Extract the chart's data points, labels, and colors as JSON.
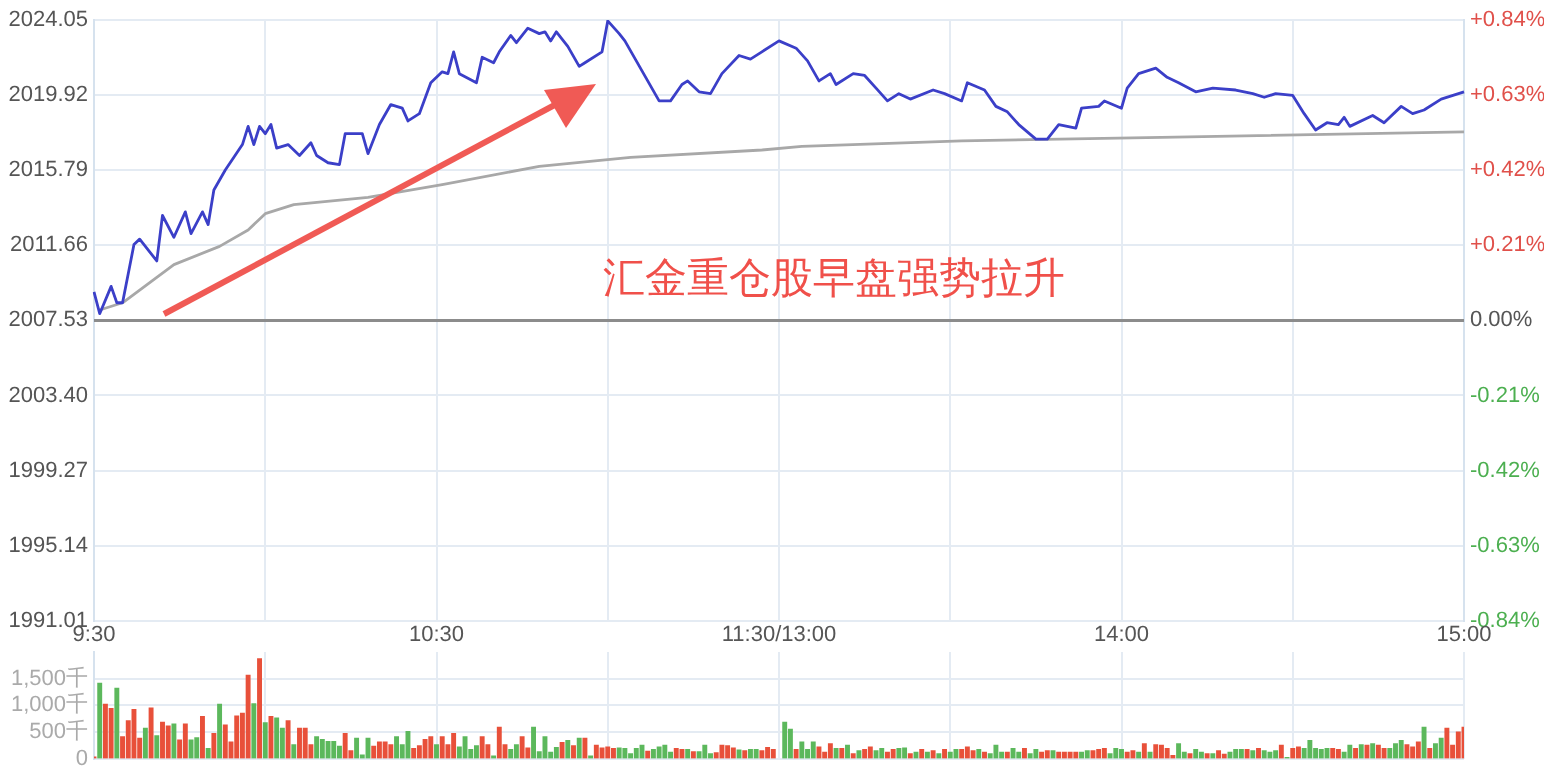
{
  "chart_data": {
    "type": "line",
    "marker": "none",
    "grid": true,
    "y3lim": [
      0,
      2000
    ],
    "y3ticks": [
      0,
      {
        "value": 500,
        "label": "500千"
      },
      {
        "value": 1000,
        "label": "1,000千"
      },
      {
        "value": 1500,
        "label": "1,500千"
      }
    ],
    "categories": [
      "9:30",
      null,
      null,
      null,
      null,
      null,
      null,
      null,
      null,
      null,
      null,
      null,
      null,
      null,
      null,
      null,
      null,
      null,
      null,
      null,
      null,
      null,
      null,
      null,
      null,
      null,
      null,
      null,
      null,
      null,
      null,
      null,
      null,
      null,
      null,
      null,
      null,
      null,
      null,
      null,
      null,
      null,
      null,
      null,
      null,
      null,
      null,
      null,
      null,
      null,
      null,
      null,
      null,
      null,
      null,
      null,
      null,
      null,
      null,
      null,
      "10:30",
      null,
      null,
      null,
      null,
      null,
      null,
      null,
      null,
      null,
      null,
      null,
      null,
      null,
      null,
      null,
      null,
      null,
      null,
      null,
      null,
      null,
      null,
      null,
      null,
      null,
      null,
      null,
      null,
      null,
      null,
      null,
      null,
      null,
      null,
      null,
      null,
      null,
      null,
      null,
      null,
      null,
      null,
      null,
      null,
      null,
      null,
      null,
      null,
      null,
      null,
      null,
      null,
      null,
      null,
      null,
      null,
      null,
      null,
      null,
      "11:30/13:00",
      null,
      null,
      null,
      null,
      null,
      null,
      null,
      null,
      null,
      null,
      null,
      null,
      null,
      null,
      null,
      null,
      null,
      null,
      null,
      null,
      null,
      null,
      null,
      null,
      null,
      null,
      null,
      null,
      null,
      null,
      null,
      null,
      null,
      null,
      null,
      null,
      null,
      null,
      null,
      null,
      null,
      null,
      null,
      null,
      null,
      null,
      null,
      null,
      null,
      null,
      null,
      null,
      null,
      null,
      null,
      null,
      null,
      null,
      null,
      "14:00",
      null,
      null,
      null,
      null,
      null,
      null,
      null,
      null,
      null,
      null,
      null,
      null,
      null,
      null,
      null,
      null,
      null,
      null,
      null,
      null,
      null,
      null,
      null,
      null,
      null,
      null,
      null,
      null,
      null,
      null,
      null,
      null,
      null,
      null,
      null,
      null,
      null,
      null,
      null,
      null,
      null,
      null,
      null,
      null,
      null,
      null,
      null,
      null,
      null,
      null,
      null,
      null,
      null,
      null,
      null,
      null,
      null,
      null,
      null,
      "15:00"
    ],
    "ylim": [
      1991.01,
      2024.05
    ],
    "yticks": [
      1991.01,
      1995.14,
      1999.27,
      {
        "value": 2003.4,
        "label": "2003.40"
      },
      2007.53,
      2011.66,
      2015.79,
      2019.92,
      2024.05
    ],
    "y2lim": [
      -0.84,
      0.84
    ],
    "y2ticks": [
      {
        "value": -0.84,
        "label": "-0.84%"
      },
      {
        "value": -0.63,
        "label": "-0.63%"
      },
      {
        "value": -0.42,
        "label": "-0.42%"
      },
      {
        "value": -0.21,
        "label": "-0.21%"
      },
      {
        "value": 0,
        "label": "0.00%"
      },
      {
        "value": 0.21,
        "label": "+0.21%"
      },
      {
        "value": 0.42,
        "label": "+0.42%"
      },
      {
        "value": 0.63,
        "label": "+0.63%"
      },
      {
        "value": 0.84,
        "label": "+0.84%"
      }
    ],
    "ref_lines": [
      {
        "axis": "y",
        "value": 2007.53,
        "color": "#8c8c8c"
      }
    ],
    "annotations": [
      "汇金重仓股早盘强势拉升"
    ],
    "series": [
      {
        "color": "#3b3fc8",
        "values": [
          2009.1,
          2007.9,
          null,
          2009.4,
          2008.5,
          2008.5,
          null,
          2011.7,
          2012.0,
          2011.6,
          null,
          2010.8,
          2013.3,
          null,
          2012.1,
          null,
          2013.5,
          2012.3,
          null,
          2013.5,
          2012.8,
          2014.7,
          null,
          2015.8,
          null,
          null,
          2017.2,
          2018.2,
          2017.2,
          2018.2,
          2017.8,
          2018.3,
          2017.0,
          null,
          2017.2,
          null,
          2016.6,
          null,
          2017.3,
          2016.6,
          null,
          2016.2,
          null,
          2016.1,
          2017.8,
          null,
          null,
          2017.8,
          2016.7,
          null,
          2018.3,
          null,
          2019.4,
          null,
          2019.2,
          2018.5,
          null,
          2018.9,
          null,
          2020.6,
          null,
          2021.2,
          2021.1,
          2022.3,
          2021.1,
          null,
          null,
          2020.6,
          2022.0,
          null,
          2021.7,
          2022.3,
          null,
          2023.2,
          2022.8,
          null,
          2023.6,
          null,
          2023.3,
          2023.4,
          2022.9,
          2023.4,
          null,
          2022.6,
          null,
          2021.5,
          2021.7,
          null,
          null,
          2022.3,
          2024.0,
          null,
          2023.3,
          2022.9,
          null,
          2021.8,
          null,
          2020.7,
          null,
          2019.6,
          null,
          2019.6,
          null,
          2020.5,
          2020.7,
          null,
          2020.1,
          null,
          2020.0,
          null,
          2021.1,
          null,
          null,
          2022.1,
          null,
          2021.9,
          null,
          2022.3,
          null,
          null,
          2022.9,
          null,
          null,
          2022.5,
          null,
          2021.8,
          null,
          2020.7,
          null,
          2021.1,
          2020.5,
          null,
          null,
          2021.1,
          null,
          2021.0,
          null,
          2020.3,
          null,
          2019.6,
          null,
          2020.0,
          null,
          2019.7,
          null,
          null,
          null,
          2020.2,
          null,
          2020.0,
          null,
          null,
          2019.6,
          2020.6,
          null,
          null,
          2020.2,
          null,
          2019.3,
          null,
          2019.0,
          null,
          2018.3,
          null,
          null,
          2017.5,
          null,
          2017.5,
          null,
          2018.3,
          null,
          null,
          2018.1,
          2019.2,
          null,
          null,
          2019.3,
          2019.6,
          null,
          null,
          2019.2,
          2020.3,
          null,
          2021.1,
          null,
          null,
          2021.4,
          null,
          2020.9,
          null,
          2020.6,
          null,
          null,
          2020.1,
          null,
          null,
          2020.3,
          null,
          null,
          null,
          2020.2,
          null,
          null,
          2020.0,
          null,
          2019.8,
          null,
          2020.0,
          null,
          null,
          2019.9,
          null,
          2018.9,
          null,
          2018.0,
          null,
          2018.4,
          null,
          2018.3,
          2018.7,
          2018.2,
          null,
          null,
          null,
          2018.8,
          null,
          2018.4,
          null,
          null,
          2019.3,
          null,
          2018.9,
          null,
          2019.1,
          null,
          null,
          2019.7,
          null,
          null,
          null,
          2020.1
        ]
      },
      {
        "color": "#a8a8a8",
        "values": [
          null,
          2008.1,
          null,
          null,
          null,
          2008.5,
          null,
          null,
          null,
          null,
          null,
          null,
          null,
          null,
          2010.6,
          null,
          null,
          null,
          null,
          null,
          null,
          null,
          2011.6,
          null,
          null,
          null,
          null,
          2012.5,
          null,
          null,
          2013.4,
          null,
          null,
          null,
          null,
          2013.9,
          null,
          null,
          null,
          null,
          null,
          null,
          null,
          null,
          null,
          null,
          null,
          null,
          2014.3,
          null,
          null,
          null,
          null,
          null,
          null,
          null,
          null,
          null,
          null,
          null,
          null,
          2015.0,
          null,
          null,
          null,
          null,
          null,
          null,
          null,
          null,
          null,
          null,
          null,
          null,
          null,
          null,
          null,
          null,
          2016.0,
          null,
          null,
          null,
          null,
          null,
          null,
          null,
          null,
          null,
          null,
          null,
          null,
          null,
          null,
          null,
          2016.5,
          null,
          null,
          null,
          null,
          null,
          null,
          null,
          null,
          null,
          null,
          null,
          null,
          null,
          null,
          null,
          null,
          null,
          null,
          null,
          null,
          null,
          null,
          2016.9,
          null,
          null,
          null,
          null,
          null,
          null,
          2017.1,
          null,
          null,
          null,
          null,
          null,
          null,
          null,
          null,
          null,
          null,
          null,
          null,
          null,
          null,
          null,
          null,
          null,
          null,
          null,
          null,
          null,
          null,
          null,
          null,
          null,
          null,
          null,
          2017.4,
          null,
          null,
          null,
          null,
          null,
          null,
          null,
          null,
          null,
          null,
          null,
          null,
          null,
          null,
          null,
          null,
          null,
          null,
          null,
          null,
          null,
          null,
          null,
          null,
          null,
          null,
          null,
          null,
          null,
          null,
          null,
          null,
          null,
          null,
          2017.6,
          null,
          null,
          null,
          null,
          null,
          null,
          null,
          null,
          null,
          null,
          null,
          null,
          null,
          null,
          null,
          null,
          null,
          null,
          null,
          null,
          null,
          null,
          null,
          null,
          null,
          null,
          null,
          null,
          null,
          null,
          null,
          null,
          null,
          null,
          null,
          null,
          null,
          null,
          null,
          null,
          null,
          null,
          null,
          null,
          null,
          null,
          null,
          null,
          null,
          null,
          null,
          null,
          2017.9
        ]
      },
      {
        "type": "bar",
        "axis": "y3",
        "values": [
          30,
          1410,
          1020,
          940,
          1320,
          410,
          710,
          920,
          380,
          570,
          950,
          430,
          680,
          610,
          650,
          350,
          650,
          350,
          390,
          790,
          190,
          470,
          1020,
          630,
          310,
          800,
          850,
          1560,
          1030,
          1870,
          670,
          790,
          760,
          570,
          710,
          260,
          570,
          570,
          260,
          410,
          360,
          320,
          320,
          230,
          470,
          150,
          380,
          70,
          380,
          230,
          310,
          310,
          260,
          410,
          260,
          510,
          190,
          240,
          360,
          410,
          260,
          410,
          260,
          470,
          220,
          410,
          170,
          240,
          410,
          260,
          50,
          590,
          260,
          170,
          260,
          410,
          200,
          590,
          130,
          410,
          120,
          210,
          300,
          340,
          240,
          380,
          380,
          50,
          250,
          200,
          220,
          190,
          200,
          190,
          90,
          190,
          250,
          140,
          170,
          220,
          250,
          120,
          190,
          170,
          170,
          130,
          130,
          250,
          90,
          110,
          250,
          240,
          200,
          160,
          150,
          170,
          170,
          150,
          210,
          170,
          null,
          680,
          550,
          170,
          310,
          170,
          310,
          220,
          120,
          280,
          190,
          190,
          250,
          90,
          150,
          170,
          220,
          150,
          190,
          120,
          170,
          190,
          200,
          90,
          120,
          170,
          120,
          150,
          90,
          170,
          120,
          170,
          170,
          220,
          150,
          170,
          120,
          90,
          250,
          120,
          120,
          190,
          120,
          190,
          90,
          170,
          120,
          150,
          150,
          120,
          120,
          120,
          120,
          120,
          150,
          150,
          170,
          190,
          90,
          190,
          170,
          120,
          150,
          120,
          280,
          120,
          260,
          250,
          190,
          60,
          280,
          120,
          90,
          170,
          120,
          90,
          90,
          150,
          80,
          120,
          170,
          170,
          170,
          150,
          190,
          150,
          120,
          150,
          250,
          20,
          190,
          220,
          190,
          340,
          190,
          170,
          190,
          190,
          170,
          120,
          250,
          190,
          260,
          250,
          280,
          250,
          190,
          190,
          280,
          340,
          260,
          220,
          310,
          590,
          190,
          280,
          380,
          570,
          250,
          500,
          590
        ],
        "colors": [
          "#e8503a",
          "#5cb85c",
          "#e8503a",
          "#e8503a",
          "#5cb85c",
          "#e8503a",
          "#e8503a",
          "#e8503a",
          "#e8503a",
          "#5cb85c",
          "#e8503a",
          "#5cb85c",
          "#e8503a",
          "#e8503a",
          "#5cb85c",
          "#e8503a",
          "#e8503a",
          "#5cb85c",
          "#5cb85c",
          "#e8503a",
          "#5cb85c",
          "#e8503a",
          "#5cb85c",
          "#e8503a",
          "#e8503a",
          "#e8503a",
          "#e8503a",
          "#e8503a",
          "#5cb85c",
          "#e8503a",
          "#5cb85c",
          "#e8503a",
          "#5cb85c",
          "#5cb85c",
          "#e8503a",
          "#5cb85c",
          "#e8503a",
          "#e8503a",
          "#e8503a",
          "#5cb85c",
          "#5cb85c",
          "#5cb85c",
          "#5cb85c",
          "#5cb85c",
          "#e8503a",
          "#e8503a",
          "#5cb85c",
          "#5cb85c",
          "#5cb85c",
          "#e8503a",
          "#e8503a",
          "#e8503a",
          "#e8503a",
          "#5cb85c",
          "#5cb85c",
          "#5cb85c",
          "#e8503a",
          "#e8503a",
          "#e8503a",
          "#e8503a",
          "#5cb85c",
          "#e8503a",
          "#e8503a",
          "#e8503a",
          "#5cb85c",
          "#5cb85c",
          "#5cb85c",
          "#5cb85c",
          "#e8503a",
          "#e8503a",
          "#5cb85c",
          "#e8503a",
          "#e8503a",
          "#5cb85c",
          "#5cb85c",
          "#e8503a",
          "#e8503a",
          "#5cb85c",
          "#5cb85c",
          "#5cb85c",
          "#5cb85c",
          "#5cb85c",
          "#e8503a",
          "#5cb85c",
          "#e8503a",
          "#5cb85c",
          "#e8503a",
          "#5cb85c",
          "#e8503a",
          "#e8503a",
          "#e8503a",
          "#e8503a",
          "#5cb85c",
          "#5cb85c",
          "#5cb85c",
          "#5cb85c",
          "#5cb85c",
          "#e8503a",
          "#5cb85c",
          "#5cb85c",
          "#5cb85c",
          "#5cb85c",
          "#e8503a",
          "#e8503a",
          "#5cb85c",
          "#e8503a",
          "#5cb85c",
          "#5cb85c",
          "#5cb85c",
          "#e8503a",
          "#e8503a",
          "#e8503a",
          "#e8503a",
          "#5cb85c",
          "#e8503a",
          "#5cb85c",
          "#5cb85c",
          "#e8503a",
          "#e8503a",
          "#e8503a",
          null,
          "#5cb85c",
          "#5cb85c",
          "#e8503a",
          "#5cb85c",
          "#5cb85c",
          "#5cb85c",
          "#e8503a",
          "#e8503a",
          "#e8503a",
          "#5cb85c",
          "#e8503a",
          "#5cb85c",
          "#e8503a",
          "#5cb85c",
          "#e8503a",
          "#e8503a",
          "#5cb85c",
          "#5cb85c",
          "#e8503a",
          "#e8503a",
          "#5cb85c",
          "#5cb85c",
          "#e8503a",
          "#5cb85c",
          "#e8503a",
          "#5cb85c",
          "#e8503a",
          "#5cb85c",
          "#e8503a",
          "#5cb85c",
          "#5cb85c",
          "#e8503a",
          "#e8503a",
          "#e8503a",
          "#5cb85c",
          "#e8503a",
          "#5cb85c",
          "#5cb85c",
          "#5cb85c",
          "#e8503a",
          "#5cb85c",
          "#5cb85c",
          "#e8503a",
          "#5cb85c",
          "#5cb85c",
          "#e8503a",
          "#e8503a",
          "#5cb85c",
          "#e8503a",
          "#e8503a",
          "#e8503a",
          "#e8503a",
          "#5cb85c",
          "#5cb85c",
          "#e8503a",
          "#e8503a",
          "#e8503a",
          "#5cb85c",
          "#5cb85c",
          "#5cb85c",
          "#e8503a",
          "#e8503a",
          "#5cb85c",
          "#e8503a",
          "#5cb85c",
          "#e8503a",
          "#e8503a",
          "#e8503a",
          "#e8503a",
          "#5cb85c",
          "#5cb85c",
          "#e8503a",
          "#5cb85c",
          "#5cb85c",
          "#e8503a",
          "#5cb85c",
          "#e8503a",
          "#e8503a",
          "#5cb85c",
          "#5cb85c",
          "#5cb85c",
          "#e8503a",
          "#5cb85c",
          "#e8503a",
          "#5cb85c",
          "#5cb85c",
          "#5cb85c",
          "#e8503a",
          "#5cb85c",
          "#e8503a",
          "#e8503a",
          "#5cb85c",
          "#5cb85c",
          "#5cb85c",
          "#5cb85c",
          "#5cb85c",
          "#e8503a",
          "#e8503a",
          "#5cb85c",
          "#5cb85c",
          "#e8503a",
          "#5cb85c",
          "#e8503a",
          "#5cb85c",
          "#e8503a",
          "#e8503a",
          "#5cb85c",
          "#5cb85c",
          "#5cb85c",
          "#e8503a",
          "#e8503a",
          "#e8503a",
          "#5cb85c",
          "#e8503a",
          "#5cb85c",
          "#5cb85c",
          "#e8503a",
          "#e8503a",
          "#e8503a",
          "#e8503a"
        ]
      }
    ]
  }
}
